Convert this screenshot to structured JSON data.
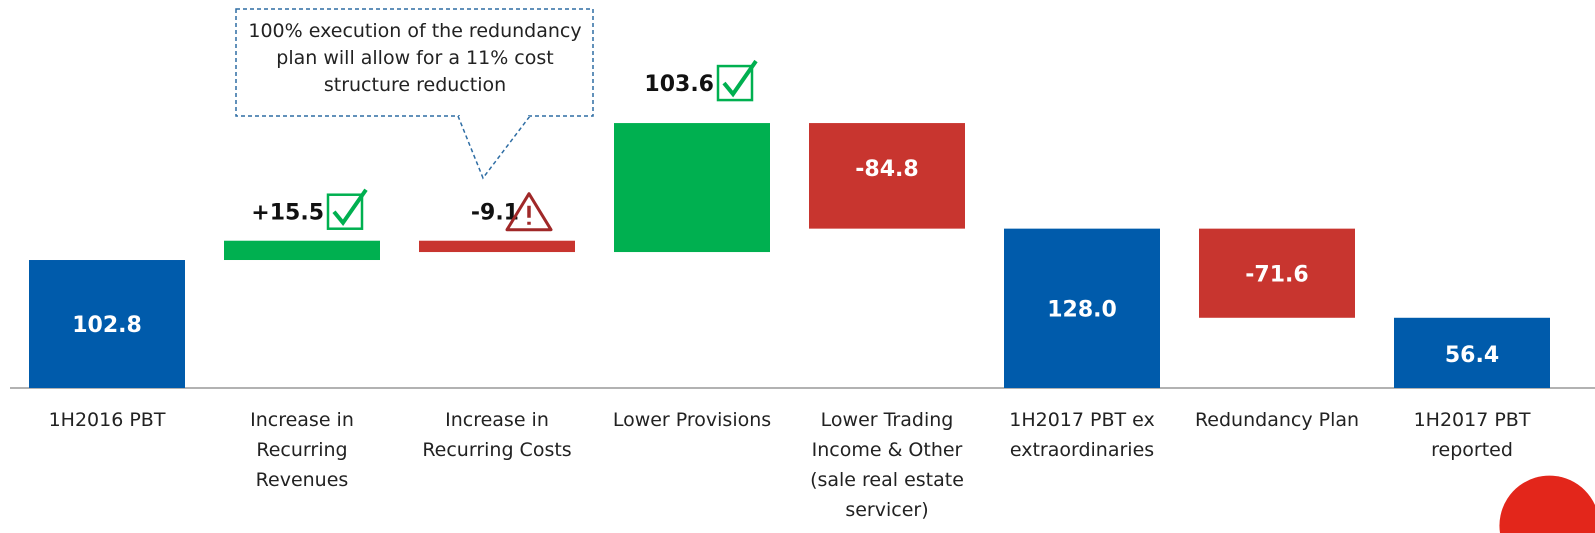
{
  "chart_data": {
    "type": "waterfall",
    "categories": [
      "1H2016 PBT",
      "Increase in Recurring Revenues",
      "Increase in Recurring Costs",
      "Lower Provisions",
      "Lower Trading Income & Other (sale real estate servicer)",
      "1H2017 PBT ex extraordinaries",
      "Redundancy Plan",
      "1H2017 PBT reported"
    ],
    "values": [
      102.8,
      15.5,
      -9.1,
      103.6,
      -84.8,
      128.0,
      -71.6,
      56.4
    ],
    "value_labels": [
      "102.8",
      "+15.5",
      "-9.1",
      "103.6",
      "-84.8",
      "128.0",
      "-71.6",
      "56.4"
    ],
    "measures": [
      "total",
      "relative",
      "relative",
      "relative",
      "relative",
      "total",
      "relative",
      "total"
    ],
    "colors": {
      "total": "#005bab",
      "increase": "#00b050",
      "decrease": "#c8352f"
    },
    "annotation": "100% execution of the redundancy plan will allow for a 11% cost structure reduction"
  }
}
